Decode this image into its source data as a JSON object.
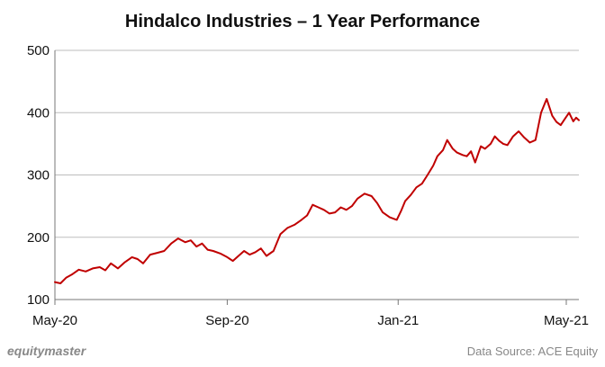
{
  "chart_data": {
    "type": "line",
    "title": "Hindalco Industries – 1 Year Performance",
    "xlabel": "",
    "ylabel": "",
    "ylim": [
      100,
      500
    ],
    "yticks": [
      100,
      200,
      300,
      400,
      500
    ],
    "xticks": [
      "May-20",
      "Sep-20",
      "Jan-21",
      "May-21"
    ],
    "xlim": [
      "2020-05-01",
      "2021-05-10"
    ],
    "grid": true,
    "line_color": "#c00000",
    "series": [
      {
        "x": [
          "2020-05-01",
          "2020-05-05",
          "2020-05-09",
          "2020-05-13",
          "2020-05-18",
          "2020-05-23",
          "2020-05-28",
          "2020-06-02",
          "2020-06-06",
          "2020-06-10",
          "2020-06-15",
          "2020-06-20",
          "2020-06-25",
          "2020-06-29",
          "2020-07-03",
          "2020-07-08",
          "2020-07-13",
          "2020-07-18",
          "2020-07-23",
          "2020-07-28",
          "2020-08-02",
          "2020-08-06",
          "2020-08-10",
          "2020-08-14",
          "2020-08-18",
          "2020-08-22",
          "2020-08-27",
          "2020-09-01",
          "2020-09-05",
          "2020-09-09",
          "2020-09-13",
          "2020-09-17",
          "2020-09-21",
          "2020-09-25",
          "2020-09-29",
          "2020-10-04",
          "2020-10-09",
          "2020-10-14",
          "2020-10-19",
          "2020-10-24",
          "2020-10-28",
          "2020-11-01",
          "2020-11-05",
          "2020-11-09",
          "2020-11-13",
          "2020-11-17",
          "2020-11-21",
          "2020-11-25",
          "2020-11-29",
          "2020-12-03",
          "2020-12-08",
          "2020-12-13",
          "2020-12-17",
          "2020-12-21",
          "2020-12-26",
          "2020-12-31",
          "2021-01-03",
          "2021-01-06",
          "2021-01-10",
          "2021-01-14",
          "2021-01-18",
          "2021-01-22",
          "2021-01-26",
          "2021-01-29",
          "2021-02-02",
          "2021-02-05",
          "2021-02-09",
          "2021-02-12",
          "2021-02-16",
          "2021-02-19",
          "2021-02-22",
          "2021-02-25",
          "2021-03-01",
          "2021-03-04",
          "2021-03-08",
          "2021-03-11",
          "2021-03-14",
          "2021-03-17",
          "2021-03-20",
          "2021-03-24",
          "2021-03-28",
          "2021-04-01",
          "2021-04-05",
          "2021-04-09",
          "2021-04-13",
          "2021-04-17",
          "2021-04-21",
          "2021-04-24",
          "2021-04-27",
          "2021-04-30",
          "2021-05-03",
          "2021-05-06",
          "2021-05-08",
          "2021-05-10"
        ],
        "y": [
          128,
          126,
          135,
          140,
          148,
          145,
          150,
          152,
          147,
          158,
          150,
          160,
          168,
          165,
          158,
          172,
          175,
          178,
          190,
          198,
          192,
          195,
          185,
          190,
          180,
          178,
          174,
          168,
          162,
          170,
          178,
          172,
          176,
          182,
          170,
          178,
          205,
          215,
          220,
          228,
          235,
          252,
          248,
          244,
          238,
          240,
          248,
          244,
          250,
          262,
          270,
          266,
          255,
          240,
          232,
          228,
          242,
          258,
          268,
          280,
          286,
          300,
          315,
          330,
          340,
          356,
          342,
          336,
          332,
          330,
          338,
          320,
          346,
          342,
          350,
          362,
          355,
          350,
          348,
          362,
          370,
          360,
          352,
          356,
          400,
          422,
          395,
          385,
          380,
          390,
          400,
          386,
          392,
          388
        ]
      }
    ]
  },
  "footer": {
    "brand": "equitymaster",
    "source": "Data Source: ACE Equity"
  }
}
